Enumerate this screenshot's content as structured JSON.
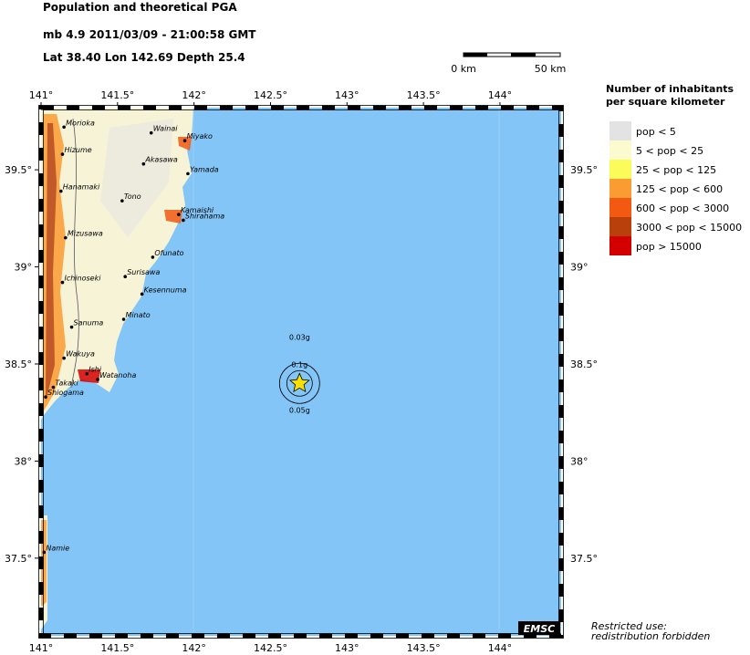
{
  "header": {
    "title": "Population and theoretical PGA",
    "line1": "mb 4.9  2011/03/09 - 21:00:58 GMT",
    "line2": "Lat 38.40    Lon 142.69    Depth  25.4"
  },
  "scale_bar": {
    "labels": [
      "0 km",
      "50 km"
    ]
  },
  "map": {
    "lonlim": [
      141,
      144.4
    ],
    "latlim": [
      37.1,
      39.82
    ],
    "lonticks": [
      {
        "value": 141,
        "label": "141°"
      },
      {
        "value": 141.5,
        "label": "141.5°"
      },
      {
        "value": 142,
        "label": "142°"
      },
      {
        "value": 142.5,
        "label": "142.5°"
      },
      {
        "value": 143,
        "label": "143°"
      },
      {
        "value": 143.5,
        "label": "143.5°"
      },
      {
        "value": 144,
        "label": "144°"
      }
    ],
    "latticks": [
      {
        "value": 39.5,
        "label": "39.5°"
      },
      {
        "value": 39,
        "label": "39°"
      },
      {
        "value": 38.5,
        "label": "38.5°"
      },
      {
        "value": 38,
        "label": "38°"
      },
      {
        "value": 37.5,
        "label": "37.5°"
      }
    ],
    "cities": [
      {
        "name": "Morioka",
        "lon": 141.15,
        "lat": 39.72
      },
      {
        "name": "Wainai",
        "lon": 141.72,
        "lat": 39.69
      },
      {
        "name": "Miyako",
        "lon": 141.94,
        "lat": 39.65
      },
      {
        "name": "Hizume",
        "lon": 141.14,
        "lat": 39.58
      },
      {
        "name": "Akasawa",
        "lon": 141.67,
        "lat": 39.53
      },
      {
        "name": "Yamada",
        "lon": 141.96,
        "lat": 39.48
      },
      {
        "name": "Hanamaki",
        "lon": 141.13,
        "lat": 39.39
      },
      {
        "name": "Tono",
        "lon": 141.53,
        "lat": 39.34
      },
      {
        "name": "Kamaishi",
        "lon": 141.9,
        "lat": 39.27
      },
      {
        "name": "Shirahama",
        "lon": 141.93,
        "lat": 39.24
      },
      {
        "name": "Mizusawa",
        "lon": 141.16,
        "lat": 39.15
      },
      {
        "name": "Ofunato",
        "lon": 141.73,
        "lat": 39.05
      },
      {
        "name": "Surisawa",
        "lon": 141.55,
        "lat": 38.95
      },
      {
        "name": "Ichinoseki",
        "lon": 141.14,
        "lat": 38.92
      },
      {
        "name": "Kesennuma",
        "lon": 141.66,
        "lat": 38.86
      },
      {
        "name": "Minato",
        "lon": 141.54,
        "lat": 38.73
      },
      {
        "name": "Sanuma",
        "lon": 141.2,
        "lat": 38.69
      },
      {
        "name": "Wakuya",
        "lon": 141.15,
        "lat": 38.53
      },
      {
        "name": "Ishi",
        "lon": 141.3,
        "lat": 38.45
      },
      {
        "name": "Watanoha",
        "lon": 141.37,
        "lat": 38.42
      },
      {
        "name": "Takaki",
        "lon": 141.08,
        "lat": 38.38
      },
      {
        "name": "Shiogama",
        "lon": 141.03,
        "lat": 38.33
      },
      {
        "name": "Namie",
        "lon": 141.02,
        "lat": 37.53
      }
    ],
    "epicenter": {
      "lon": 142.69,
      "lat": 38.4
    },
    "pga_labels": [
      "0.03g",
      "0.1g",
      "0.05g"
    ],
    "badge": "EMSC"
  },
  "legend": {
    "title": [
      "Number of inhabitants",
      "per square kilometer"
    ],
    "items": [
      {
        "label": "pop < 5",
        "color": "#e3e3e3"
      },
      {
        "label": "5 < pop < 25",
        "color": "#fbfbcf"
      },
      {
        "label": "25 < pop < 125",
        "color": "#fbfb5a"
      },
      {
        "label": "125 < pop < 600",
        "color": "#fb9c32"
      },
      {
        "label": "600 < pop < 3000",
        "color": "#f25a12"
      },
      {
        "label": "3000 < pop < 15000",
        "color": "#b8400a"
      },
      {
        "label": "pop > 15000",
        "color": "#d40000"
      }
    ]
  },
  "footer": [
    "Restricted use:",
    "redistribution forbidden"
  ]
}
